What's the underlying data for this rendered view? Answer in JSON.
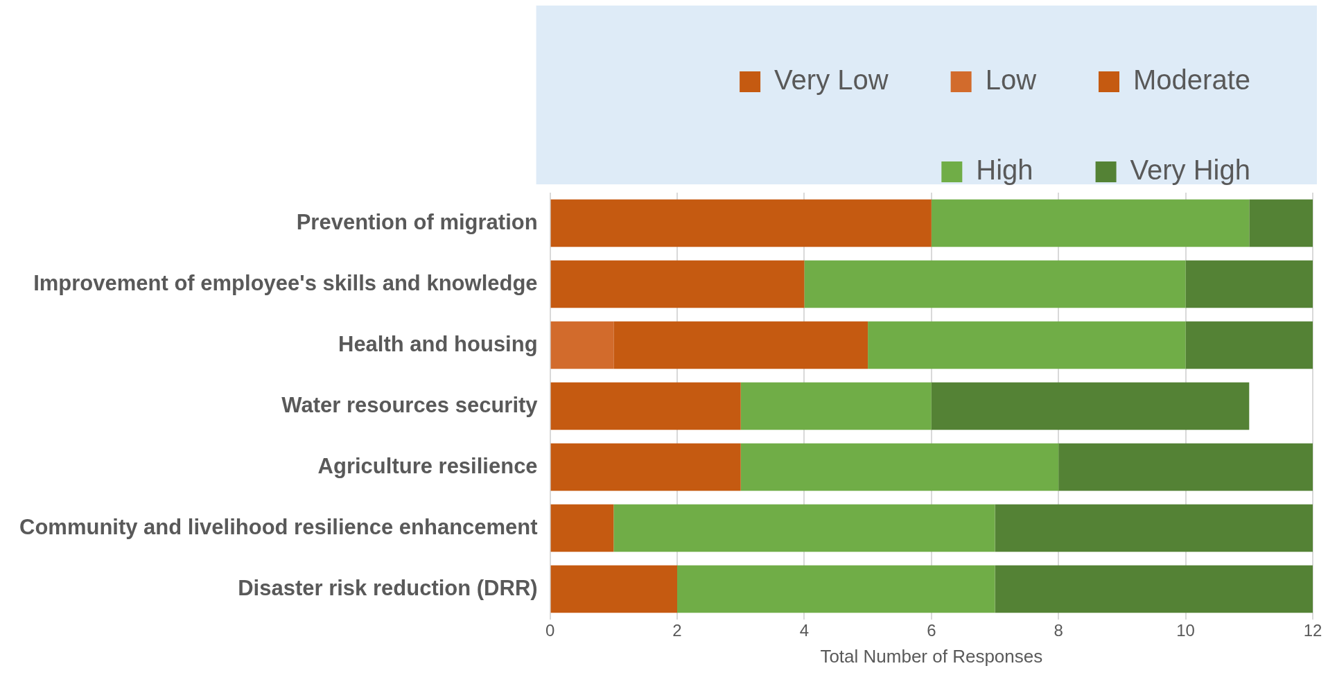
{
  "chart_data": {
    "type": "bar",
    "orientation": "horizontal",
    "stacked": true,
    "xlabel": "Total Number of Responses",
    "categories": [
      "Prevention of migration",
      "Improvement of employee's skills and knowledge",
      "Health and housing",
      "Water resources security",
      "Agriculture resilience",
      "Community and livelihood resilience enhancement",
      "Disaster risk reduction (DRR)"
    ],
    "series": [
      {
        "name": "Very Low",
        "color": "#c55a11",
        "values": [
          0,
          0,
          0,
          0,
          0,
          0,
          0
        ]
      },
      {
        "name": "Low",
        "color": "#d26b2c",
        "values": [
          0,
          0,
          1,
          0,
          0,
          0,
          0
        ]
      },
      {
        "name": "Moderate",
        "color": "#c55a11",
        "values": [
          6,
          4,
          4,
          3,
          3,
          1,
          2
        ]
      },
      {
        "name": "High",
        "color": "#70ad47",
        "values": [
          5,
          6,
          5,
          3,
          5,
          6,
          5
        ]
      },
      {
        "name": "Very High",
        "color": "#548235",
        "values": [
          1,
          2,
          2,
          5,
          4,
          5,
          5
        ]
      }
    ],
    "xlim": [
      0,
      12
    ],
    "xticks": [
      0,
      2,
      4,
      6,
      8,
      10,
      12
    ],
    "grid": "x",
    "legend": "top right"
  }
}
